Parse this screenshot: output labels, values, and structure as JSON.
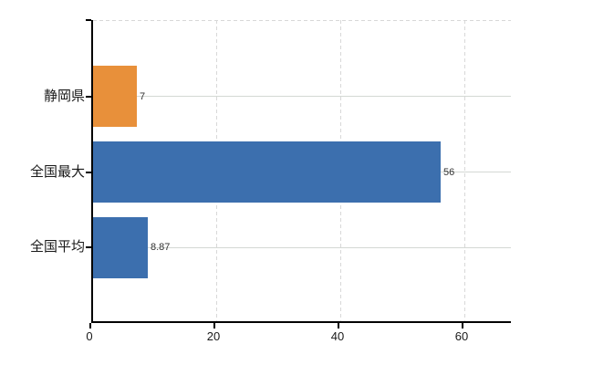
{
  "chart_data": {
    "type": "bar",
    "orientation": "horizontal",
    "title": "",
    "categories": [
      "静岡県",
      "全国最大",
      "全国平均"
    ],
    "values": [
      7,
      56,
      8.87
    ],
    "value_labels": [
      "7",
      "56",
      "8.87"
    ],
    "bar_colors": [
      "#e8903a",
      "#3c6fae",
      "#3c6fae"
    ],
    "x_ticks": [
      0,
      20,
      40,
      60
    ],
    "x_tick_labels": [
      "0",
      "20",
      "40",
      "60"
    ],
    "xlim": [
      0,
      67.6
    ],
    "grid": true,
    "legend_position": "none",
    "colors": {
      "background": "#ffffff",
      "axis": "#000000",
      "gridline": "#d8d8d8",
      "category_label": "#1a1a1a",
      "value_label": "#333333",
      "orange_bar": "#e8903a",
      "blue_bar": "#3c6fae"
    }
  }
}
